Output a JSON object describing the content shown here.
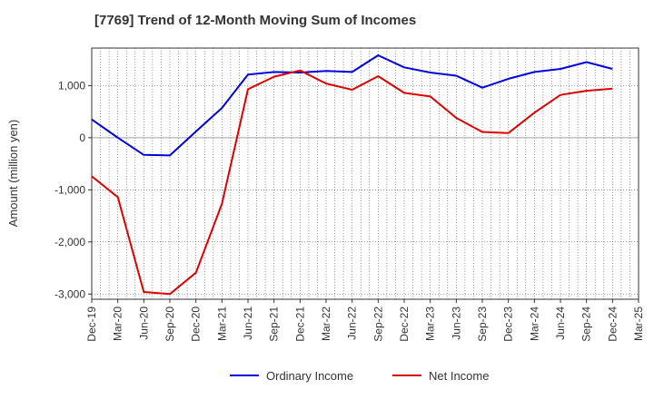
{
  "chart_data": {
    "type": "line",
    "title": "[7769]  Trend of 12-Month Moving Sum of Incomes",
    "xlabel": "",
    "ylabel": "Amount (million yen)",
    "ylim": [
      -3100,
      1720
    ],
    "yticks": [
      -3000,
      -2000,
      -1000,
      0,
      1000
    ],
    "ytick_labels": [
      "-3,000",
      "-2,000",
      "-1,000",
      "0",
      "1,000"
    ],
    "categories": [
      "Dec-19",
      "Mar-20",
      "Jun-20",
      "Sep-20",
      "Dec-20",
      "Mar-21",
      "Jun-21",
      "Sep-21",
      "Dec-21",
      "Mar-22",
      "Jun-22",
      "Sep-22",
      "Dec-22",
      "Mar-23",
      "Jun-23",
      "Sep-23",
      "Dec-23",
      "Mar-24",
      "Jun-24",
      "Sep-24",
      "Dec-24",
      "Mar-25"
    ],
    "series": [
      {
        "name": "Ordinary Income",
        "color": "#0000dd",
        "values": [
          350,
          0,
          -330,
          -340,
          120,
          570,
          1210,
          1260,
          1250,
          1280,
          1260,
          1580,
          1350,
          1250,
          1190,
          960,
          1130,
          1260,
          1320,
          1450,
          1320,
          null
        ]
      },
      {
        "name": "Net Income",
        "color": "#dd0000",
        "values": [
          -740,
          -1140,
          -2960,
          -3000,
          -2590,
          -1270,
          930,
          1170,
          1290,
          1040,
          920,
          1180,
          860,
          790,
          380,
          110,
          90,
          480,
          820,
          900,
          940,
          null
        ]
      }
    ],
    "grid": true,
    "legend_position": "bottom-center"
  }
}
